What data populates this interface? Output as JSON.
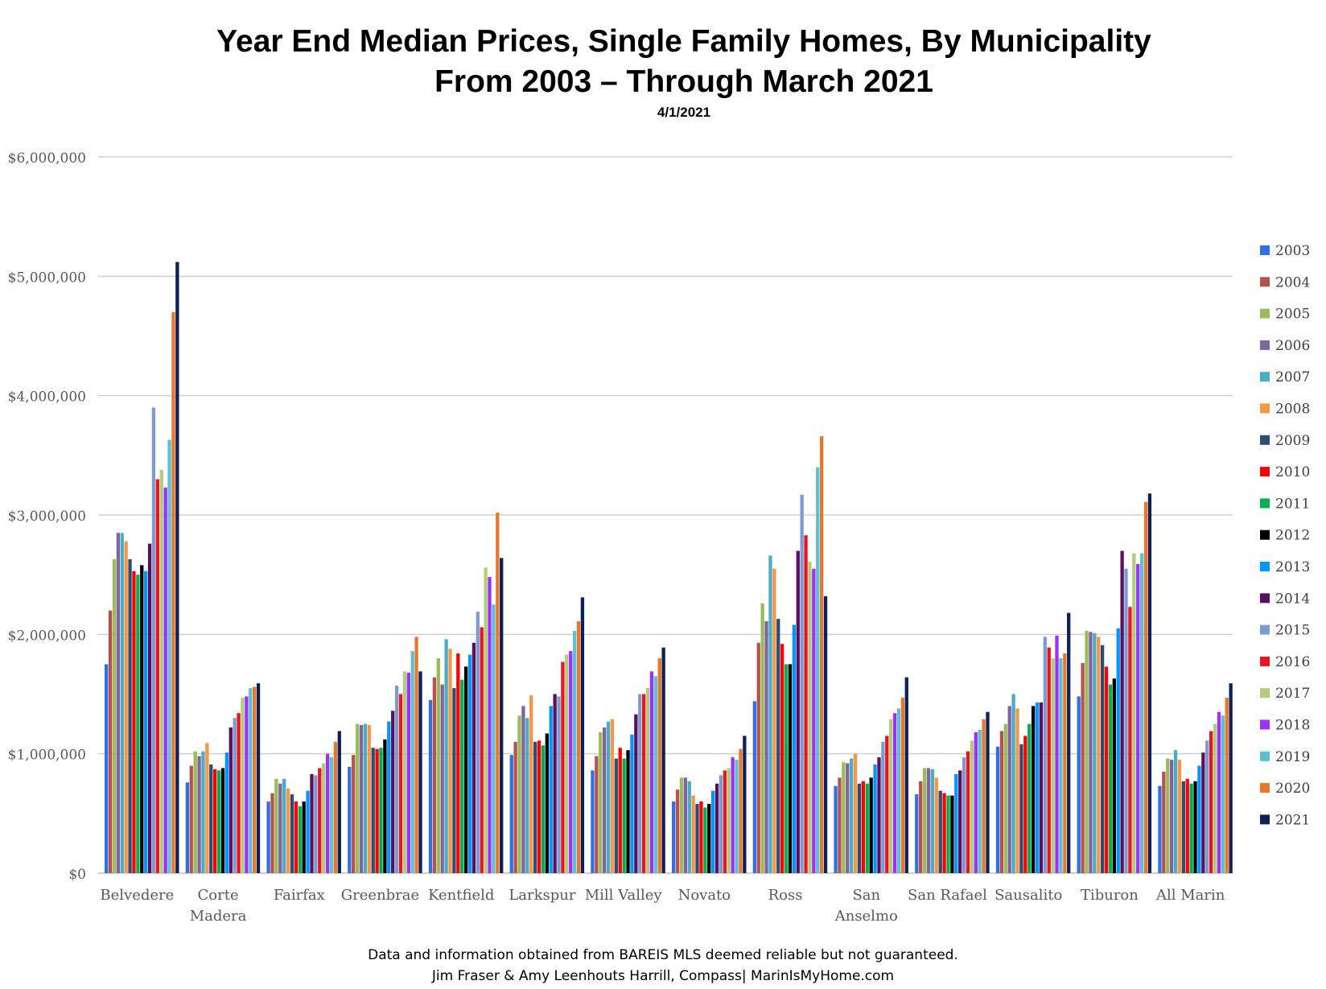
{
  "title_line1": "Year End Median Prices, Single Family Homes, By Municipality",
  "title_line2": "From 2003 – Through March 2021",
  "date": "4/1/2021",
  "footer_line1": "Data and information obtained from BAREIS MLS deemed reliable but not guaranteed.",
  "footer_line2": "Jim Fraser & Amy Leenhouts Harrill, Compass| MarinIsMyHome.com",
  "chart_data": {
    "type": "bar",
    "ylim": [
      0,
      6000000
    ],
    "yticks": [
      "$0",
      "$1,000,000",
      "$2,000,000",
      "$3,000,000",
      "$4,000,000",
      "$5,000,000",
      "$6,000,000"
    ],
    "grid": true,
    "legend_position": "right",
    "categories": [
      [
        "Belvedere"
      ],
      [
        "Corte",
        "Madera"
      ],
      [
        "Fairfax"
      ],
      [
        "Greenbrae"
      ],
      [
        "Kentfield"
      ],
      [
        "Larkspur"
      ],
      [
        "Mill Valley"
      ],
      [
        "Novato"
      ],
      [
        "Ross"
      ],
      [
        "San",
        "Anselmo"
      ],
      [
        "San Rafael"
      ],
      [
        "Sausalito"
      ],
      [
        "Tiburon"
      ],
      [
        "All Marin"
      ]
    ],
    "series": [
      {
        "name": "2003",
        "color": "#2f6fe8",
        "values": [
          1750000,
          760000,
          600000,
          890000,
          1450000,
          990000,
          860000,
          600000,
          1440000,
          730000,
          660000,
          1060000,
          1480000,
          730000
        ]
      },
      {
        "name": "2004",
        "color": "#b8514e",
        "values": [
          2200000,
          900000,
          670000,
          990000,
          1640000,
          1100000,
          980000,
          700000,
          1930000,
          800000,
          770000,
          1190000,
          1760000,
          850000
        ]
      },
      {
        "name": "2005",
        "color": "#9bbb59",
        "values": [
          2630000,
          1020000,
          790000,
          1250000,
          1800000,
          1320000,
          1180000,
          800000,
          2260000,
          930000,
          880000,
          1250000,
          2030000,
          960000
        ]
      },
      {
        "name": "2006",
        "color": "#8064a2",
        "values": [
          2850000,
          980000,
          750000,
          1240000,
          1580000,
          1400000,
          1220000,
          800000,
          2110000,
          920000,
          880000,
          1400000,
          2020000,
          950000
        ]
      },
      {
        "name": "2007",
        "color": "#4bacc6",
        "values": [
          2850000,
          1020000,
          790000,
          1250000,
          1960000,
          1300000,
          1270000,
          770000,
          2660000,
          960000,
          870000,
          1500000,
          2010000,
          1030000
        ]
      },
      {
        "name": "2008",
        "color": "#f79646",
        "values": [
          2780000,
          1090000,
          710000,
          1240000,
          1880000,
          1490000,
          1290000,
          650000,
          2550000,
          1000000,
          800000,
          1380000,
          1980000,
          950000
        ]
      },
      {
        "name": "2009",
        "color": "#2c4d75",
        "values": [
          2630000,
          910000,
          660000,
          1050000,
          1550000,
          1100000,
          960000,
          580000,
          2130000,
          750000,
          690000,
          1080000,
          1910000,
          770000
        ]
      },
      {
        "name": "2010",
        "color": "#ff0000",
        "values": [
          2530000,
          870000,
          600000,
          1040000,
          1840000,
          1110000,
          1050000,
          600000,
          1920000,
          770000,
          670000,
          1150000,
          1730000,
          790000
        ]
      },
      {
        "name": "2011",
        "color": "#00b050",
        "values": [
          2500000,
          860000,
          560000,
          1050000,
          1620000,
          1070000,
          960000,
          550000,
          1750000,
          750000,
          650000,
          1250000,
          1580000,
          750000
        ]
      },
      {
        "name": "2012",
        "color": "#000000",
        "values": [
          2580000,
          880000,
          600000,
          1120000,
          1730000,
          1170000,
          1030000,
          580000,
          1750000,
          800000,
          650000,
          1400000,
          1630000,
          770000
        ]
      },
      {
        "name": "2013",
        "color": "#0096ff",
        "values": [
          2530000,
          1010000,
          690000,
          1270000,
          1830000,
          1400000,
          1160000,
          690000,
          2080000,
          910000,
          830000,
          1430000,
          2050000,
          900000
        ]
      },
      {
        "name": "2014",
        "color": "#5b0f5f",
        "values": [
          2760000,
          1220000,
          830000,
          1360000,
          1930000,
          1500000,
          1330000,
          750000,
          2700000,
          970000,
          860000,
          1430000,
          2700000,
          1010000
        ]
      },
      {
        "name": "2015",
        "color": "#7a9cd1",
        "values": [
          3900000,
          1300000,
          820000,
          1570000,
          2190000,
          1480000,
          1500000,
          820000,
          3170000,
          1100000,
          970000,
          1980000,
          2550000,
          1110000
        ]
      },
      {
        "name": "2016",
        "color": "#e8141e",
        "values": [
          3300000,
          1340000,
          880000,
          1500000,
          2060000,
          1770000,
          1500000,
          860000,
          2830000,
          1150000,
          1020000,
          1890000,
          2230000,
          1190000
        ]
      },
      {
        "name": "2017",
        "color": "#b3cc7a",
        "values": [
          3380000,
          1470000,
          920000,
          1690000,
          2560000,
          1830000,
          1550000,
          880000,
          2610000,
          1290000,
          1110000,
          1800000,
          2680000,
          1250000
        ]
      },
      {
        "name": "2018",
        "color": "#9b30ff",
        "values": [
          3230000,
          1480000,
          1000000,
          1680000,
          2480000,
          1860000,
          1690000,
          970000,
          2550000,
          1340000,
          1180000,
          1990000,
          2590000,
          1350000
        ]
      },
      {
        "name": "2019",
        "color": "#5bbfd6",
        "values": [
          3630000,
          1550000,
          970000,
          1860000,
          2250000,
          2030000,
          1650000,
          950000,
          3400000,
          1380000,
          1200000,
          1800000,
          2680000,
          1320000
        ]
      },
      {
        "name": "2020",
        "color": "#e8762b",
        "values": [
          4700000,
          1560000,
          1100000,
          1980000,
          3020000,
          2110000,
          1800000,
          1040000,
          3660000,
          1470000,
          1290000,
          1840000,
          3110000,
          1470000
        ]
      },
      {
        "name": "2021",
        "color": "#0d2158",
        "values": [
          5120000,
          1590000,
          1190000,
          1690000,
          2640000,
          2310000,
          1890000,
          1150000,
          2320000,
          1640000,
          1350000,
          2180000,
          3180000,
          1590000
        ]
      }
    ]
  }
}
